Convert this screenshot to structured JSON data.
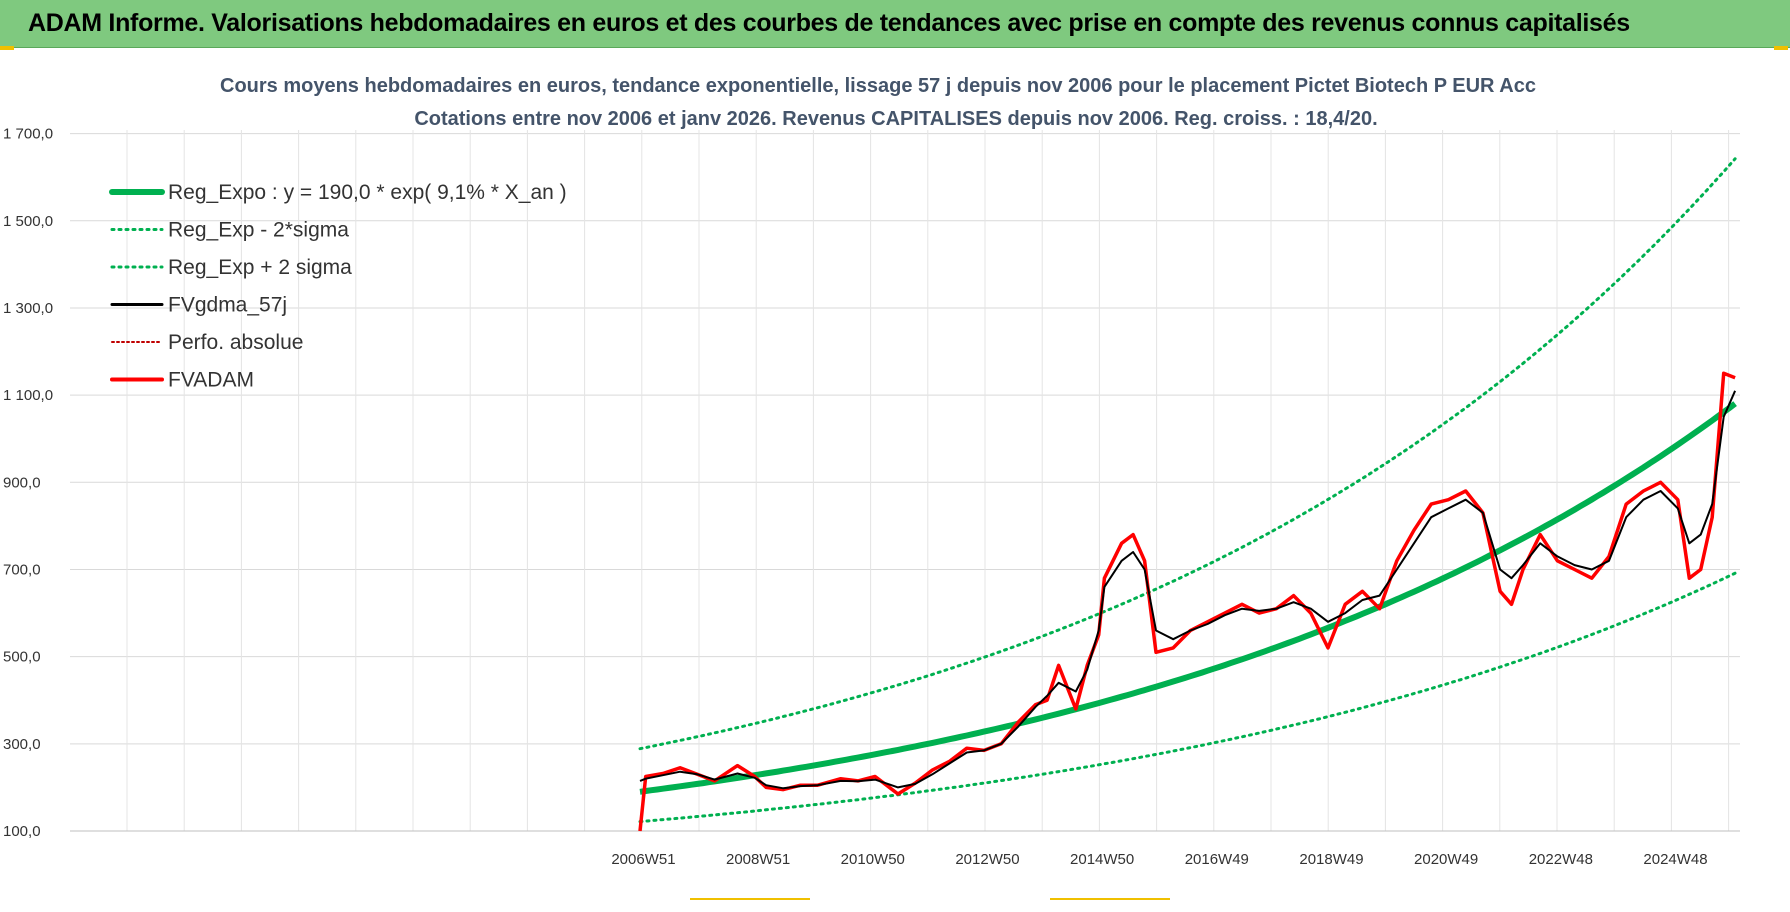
{
  "banner": {
    "title": "ADAM Informe. Valorisations hebdomadaires en euros et des courbes de tendances avec prise en compte des revenus connus capitalisés"
  },
  "colors": {
    "banner_bg": "#7fc97f",
    "regression": "#00b050",
    "smoothed": "#000000",
    "price": "#ff0000",
    "perfo": "#c00000"
  },
  "chart_data": {
    "type": "line",
    "title": "Cours moyens hebdomadaires en euros, tendance exponentielle, lissage 57 j depuis nov 2006  pour le placement Pictet Biotech P EUR Acc",
    "subtitle": "Cotations entre nov 2006 et janv 2026. Revenus CAPITALISES depuis nov 2006. Reg. croiss. : 18,4/20.",
    "ylim": [
      100,
      1800
    ],
    "y_ticks": [
      "100,0",
      "300,0",
      "500,0",
      "700,0",
      "900,0",
      "1 100,0",
      "1 300,0",
      "1 500,0",
      "1 700,0"
    ],
    "y_tick_values": [
      100,
      300,
      500,
      700,
      900,
      1100,
      1300,
      1500,
      1700
    ],
    "x_ticks": [
      "2006W51",
      "2008W51",
      "2010W50",
      "2012W50",
      "2014W50",
      "2016W49",
      "2018W49",
      "2020W49",
      "2022W48",
      "2024W48"
    ],
    "x_tick_years": [
      2006.96,
      2008.96,
      2010.96,
      2012.96,
      2014.96,
      2016.96,
      2018.96,
      2020.96,
      2022.96,
      2024.96
    ],
    "xlim": [
      2006.9,
      2026.05
    ],
    "grid": true,
    "legend_position": "top-left",
    "legend": [
      {
        "key": "reg_expo",
        "label": "Reg_Expo : y = 190,0 * exp( 9,1% *  X_an )"
      },
      {
        "key": "reg_minus",
        "label": "Reg_Exp - 2*sigma"
      },
      {
        "key": "reg_plus",
        "label": "Reg_Exp + 2 sigma"
      },
      {
        "key": "fvgdma",
        "label": "FVgdma_57j"
      },
      {
        "key": "perfo",
        "label": "Perfo. absolue"
      },
      {
        "key": "fvadam",
        "label": "FVADAM"
      }
    ],
    "regression": {
      "a": 190.0,
      "rate": 0.091,
      "start_year": 2006.9,
      "lower_factor": 0.64,
      "upper_factor": 1.52
    },
    "series": [
      {
        "name": "FVADAM",
        "x": [
          2006.9,
          2007.0,
          2007.3,
          2007.6,
          2007.9,
          2008.2,
          2008.6,
          2008.9,
          2009.1,
          2009.4,
          2009.7,
          2010.0,
          2010.4,
          2010.7,
          2011.0,
          2011.4,
          2011.7,
          2012.0,
          2012.3,
          2012.6,
          2012.9,
          2013.2,
          2013.5,
          2013.8,
          2014.0,
          2014.2,
          2014.5,
          2014.7,
          2014.9,
          2015.0,
          2015.3,
          2015.5,
          2015.7,
          2015.9,
          2016.2,
          2016.5,
          2016.8,
          2017.1,
          2017.4,
          2017.7,
          2018.0,
          2018.3,
          2018.6,
          2018.9,
          2019.2,
          2019.5,
          2019.8,
          2020.1,
          2020.4,
          2020.7,
          2021.0,
          2021.3,
          2021.6,
          2021.9,
          2022.1,
          2022.3,
          2022.6,
          2022.9,
          2023.2,
          2023.5,
          2023.8,
          2024.1,
          2024.4,
          2024.7,
          2025.0,
          2025.2,
          2025.4,
          2025.6,
          2025.8,
          2026.0
        ],
        "y": [
          100,
          225,
          232,
          245,
          230,
          215,
          250,
          225,
          200,
          195,
          205,
          205,
          220,
          215,
          225,
          185,
          210,
          240,
          260,
          290,
          285,
          300,
          350,
          390,
          400,
          480,
          380,
          480,
          550,
          680,
          760,
          780,
          720,
          510,
          520,
          560,
          580,
          600,
          620,
          600,
          610,
          640,
          600,
          520,
          620,
          650,
          610,
          720,
          790,
          850,
          860,
          880,
          830,
          650,
          620,
          700,
          780,
          720,
          700,
          680,
          730,
          850,
          880,
          900,
          860,
          680,
          700,
          820,
          1150,
          1140
        ]
      },
      {
        "name": "FVgdma_57j",
        "x": [
          2006.9,
          2007.0,
          2007.3,
          2007.6,
          2007.9,
          2008.2,
          2008.6,
          2008.9,
          2009.1,
          2009.4,
          2009.7,
          2010.0,
          2010.4,
          2010.7,
          2011.0,
          2011.4,
          2011.7,
          2012.0,
          2012.3,
          2012.6,
          2012.9,
          2013.2,
          2013.5,
          2013.8,
          2014.0,
          2014.2,
          2014.5,
          2014.7,
          2014.9,
          2015.0,
          2015.3,
          2015.5,
          2015.7,
          2015.9,
          2016.2,
          2016.5,
          2016.8,
          2017.1,
          2017.4,
          2017.7,
          2018.0,
          2018.3,
          2018.6,
          2018.9,
          2019.2,
          2019.5,
          2019.8,
          2020.1,
          2020.4,
          2020.7,
          2021.0,
          2021.3,
          2021.6,
          2021.9,
          2022.1,
          2022.3,
          2022.6,
          2022.9,
          2023.2,
          2023.5,
          2023.8,
          2024.1,
          2024.4,
          2024.7,
          2025.0,
          2025.2,
          2025.4,
          2025.6,
          2025.8,
          2026.0
        ],
        "y": [
          215,
          220,
          228,
          236,
          230,
          218,
          232,
          222,
          205,
          198,
          203,
          205,
          215,
          214,
          218,
          200,
          208,
          230,
          255,
          280,
          285,
          300,
          340,
          385,
          410,
          440,
          420,
          470,
          560,
          660,
          720,
          740,
          700,
          560,
          540,
          560,
          575,
          595,
          610,
          605,
          610,
          625,
          610,
          580,
          600,
          630,
          640,
          700,
          760,
          820,
          840,
          860,
          830,
          700,
          680,
          710,
          760,
          730,
          710,
          700,
          720,
          820,
          860,
          880,
          840,
          760,
          780,
          850,
          1050,
          1110
        ]
      }
    ]
  }
}
